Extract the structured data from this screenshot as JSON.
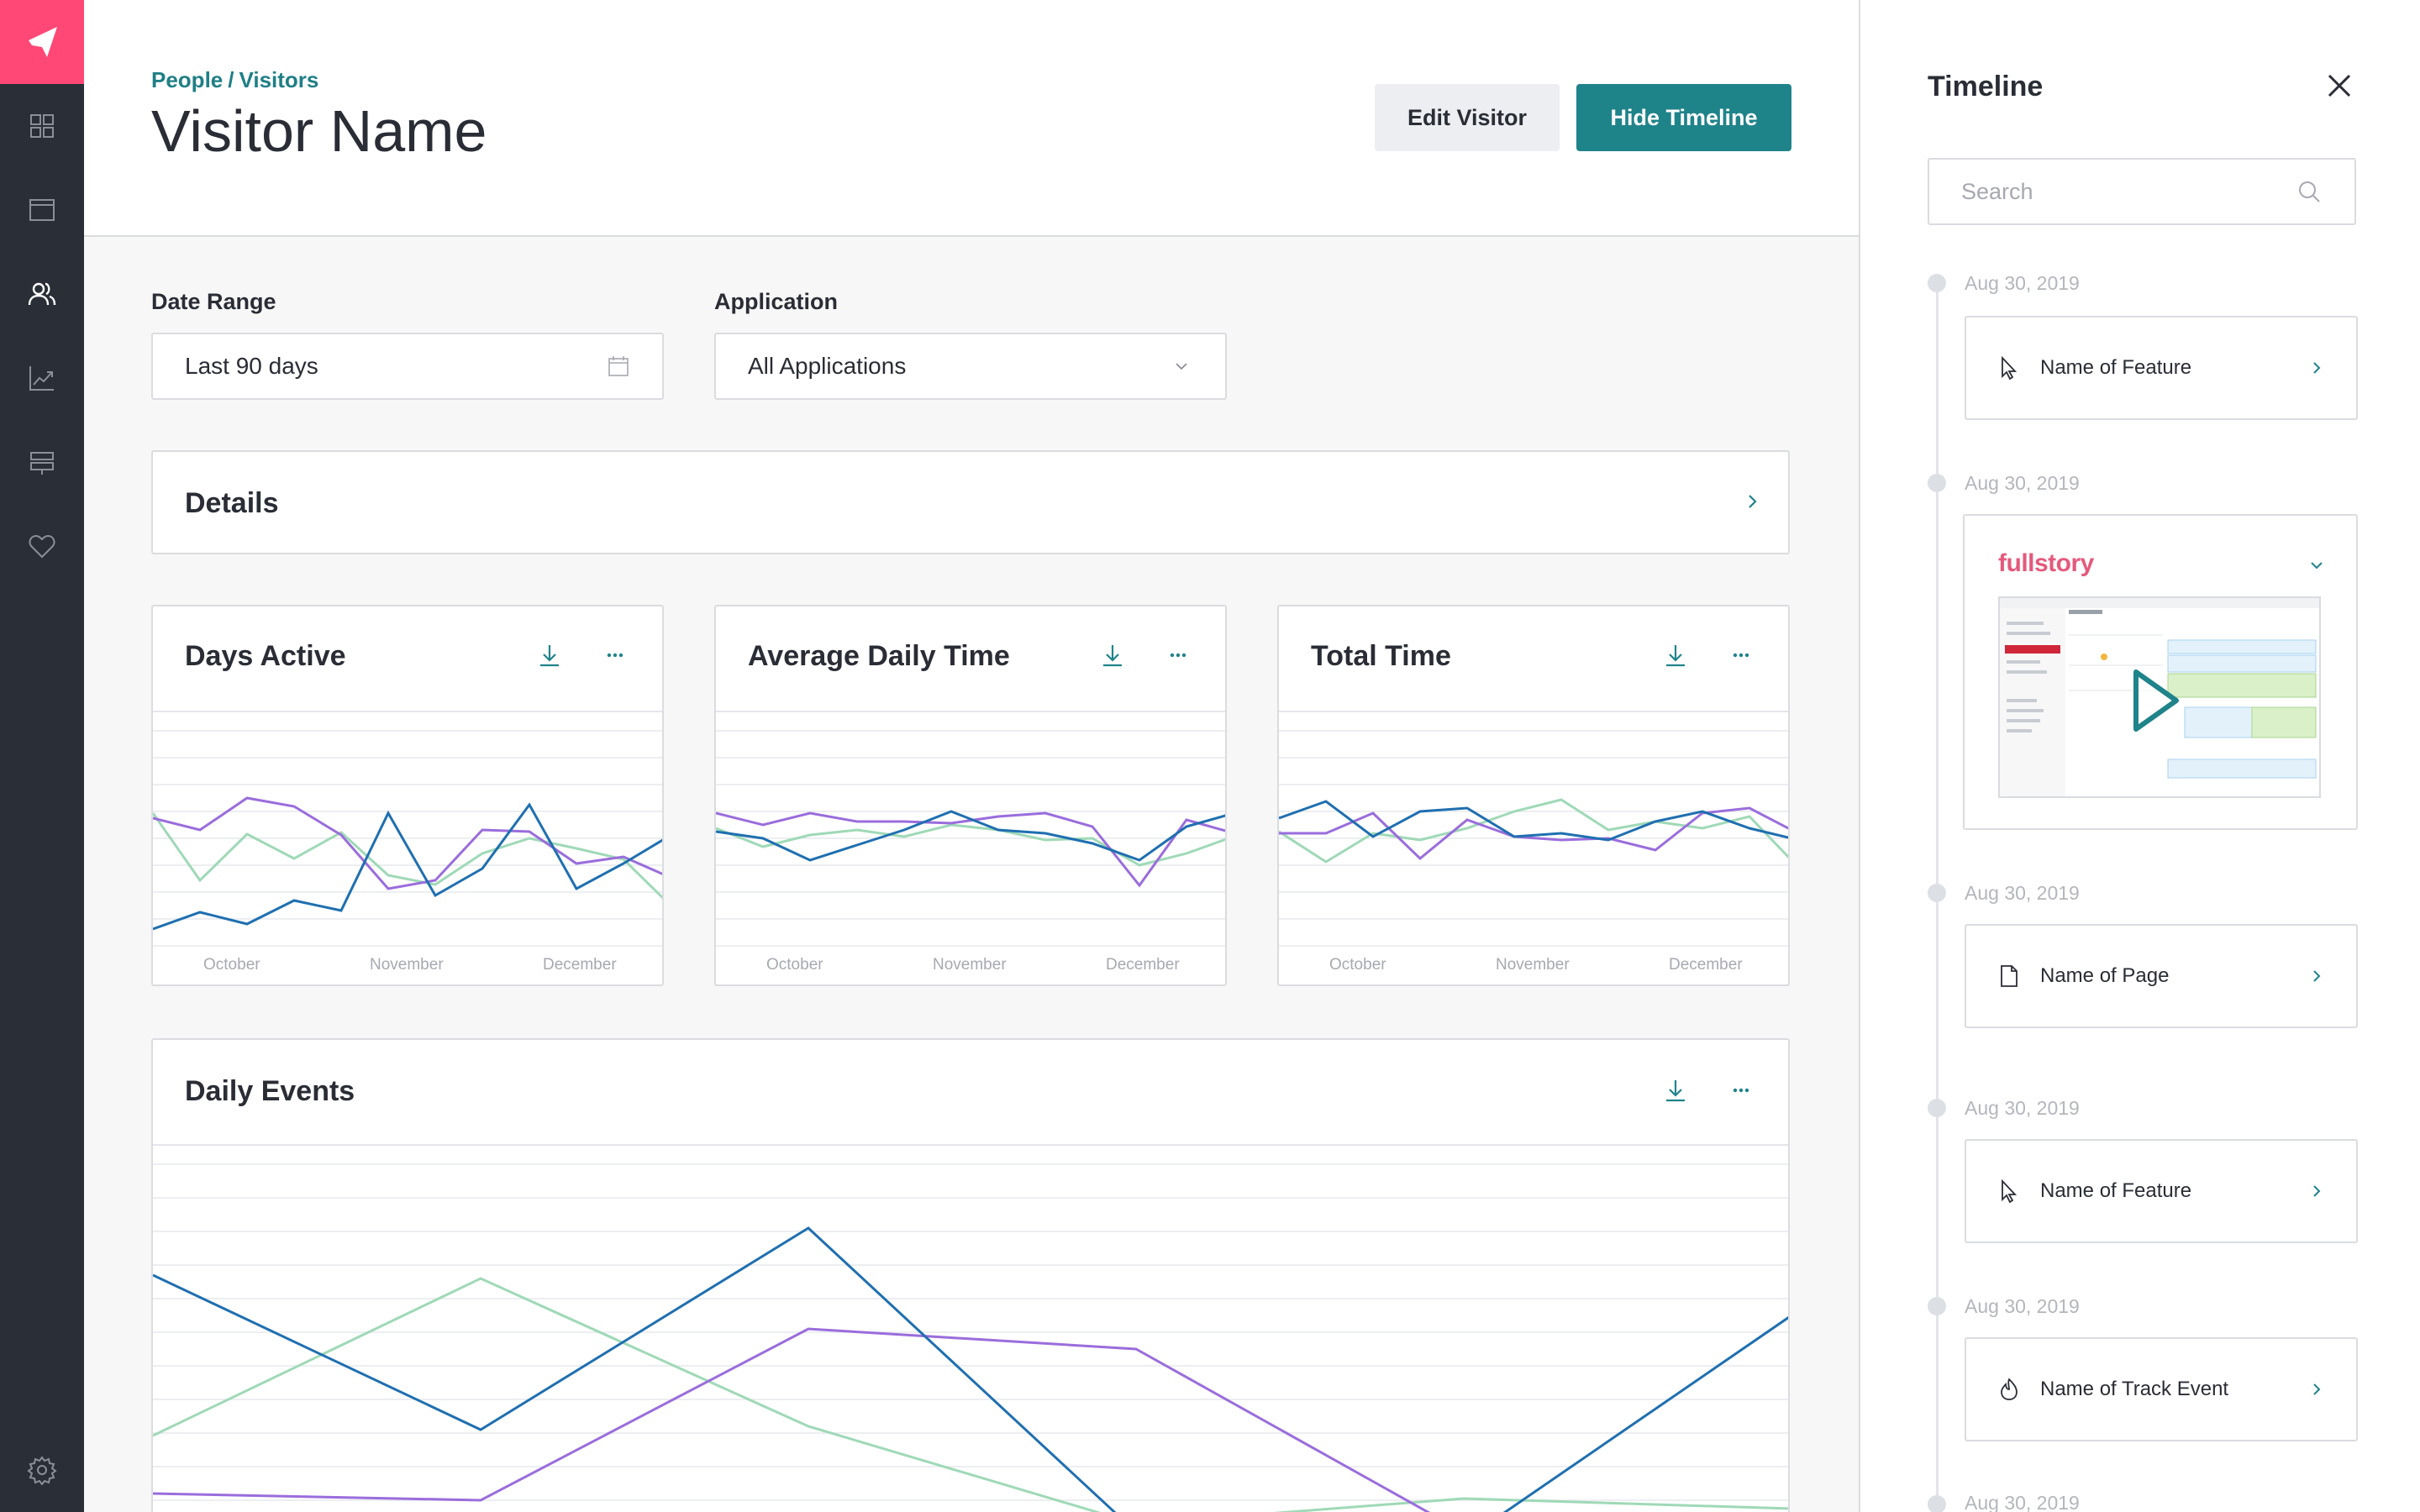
{
  "header": {
    "breadcrumb": [
      "People",
      "/",
      "Visitors"
    ],
    "title": "Visitor Name",
    "edit_button": "Edit Visitor",
    "hide_button": "Hide Timeline"
  },
  "filters": {
    "date_range": {
      "label": "Date Range",
      "value": "Last 90 days"
    },
    "application": {
      "label": "Application",
      "value": "All Applications"
    }
  },
  "details": {
    "title": "Details"
  },
  "colors": {
    "primary": "#1f838a",
    "brand": "#ff4876",
    "series_blue": "#1f6fb0",
    "series_purple": "#9a6ddc",
    "series_green": "#9fd9b7"
  },
  "charts": {
    "days_active": {
      "title": "Days Active"
    },
    "avg_daily_time": {
      "title": "Average Daily Time"
    },
    "total_time": {
      "title": "Total Time"
    },
    "daily_events": {
      "title": "Daily Events"
    },
    "x_labels": [
      "October",
      "November",
      "December"
    ]
  },
  "timeline": {
    "title": "Timeline",
    "search_placeholder": "Search",
    "items": [
      {
        "date": "Aug 30, 2019",
        "label": "Name of Feature",
        "icon": "cursor-icon"
      },
      {
        "date": "Aug 30, 2019",
        "label": "fullstory",
        "icon": "video-thumbnail"
      },
      {
        "date": "Aug 30, 2019",
        "label": "Name of Page",
        "icon": "page-icon"
      },
      {
        "date": "Aug 30, 2019",
        "label": "Name of Feature",
        "icon": "cursor-icon"
      },
      {
        "date": "Aug 30, 2019",
        "label": "Name of Track Event",
        "icon": "track-event-icon"
      },
      {
        "date": "Aug 30, 2019"
      }
    ]
  }
}
